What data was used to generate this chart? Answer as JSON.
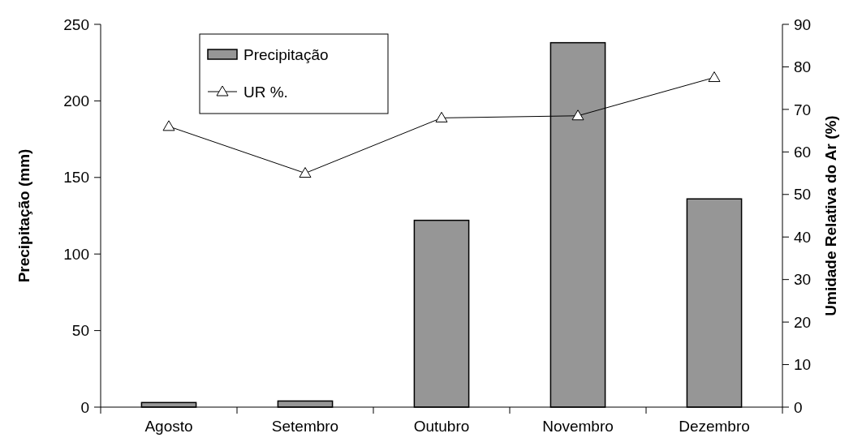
{
  "chart_data": {
    "type": "bar",
    "categories": [
      "Agosto",
      "Setembro",
      "Outubro",
      "Novembro",
      "Dezembro"
    ],
    "series": [
      {
        "name": "Precipitação",
        "color": "#969696",
        "values": [
          3,
          4,
          122,
          238,
          136
        ]
      },
      {
        "name": "UR %.",
        "type": "line",
        "axis": "y2",
        "color": "#000000",
        "marker": "triangle",
        "values": [
          66,
          55,
          68,
          68.5,
          77.5
        ]
      }
    ],
    "ylabel": "Precipitação (mm)",
    "y2label": "Umidade Relativa do Ar (%)",
    "ylim": [
      0,
      250
    ],
    "yticks": [
      0,
      50,
      100,
      150,
      200,
      250
    ],
    "y2lim": [
      0,
      90
    ],
    "y2ticks": [
      0,
      10,
      20,
      30,
      40,
      50,
      60,
      70,
      80,
      90
    ],
    "grid": false,
    "legend": "top left"
  }
}
